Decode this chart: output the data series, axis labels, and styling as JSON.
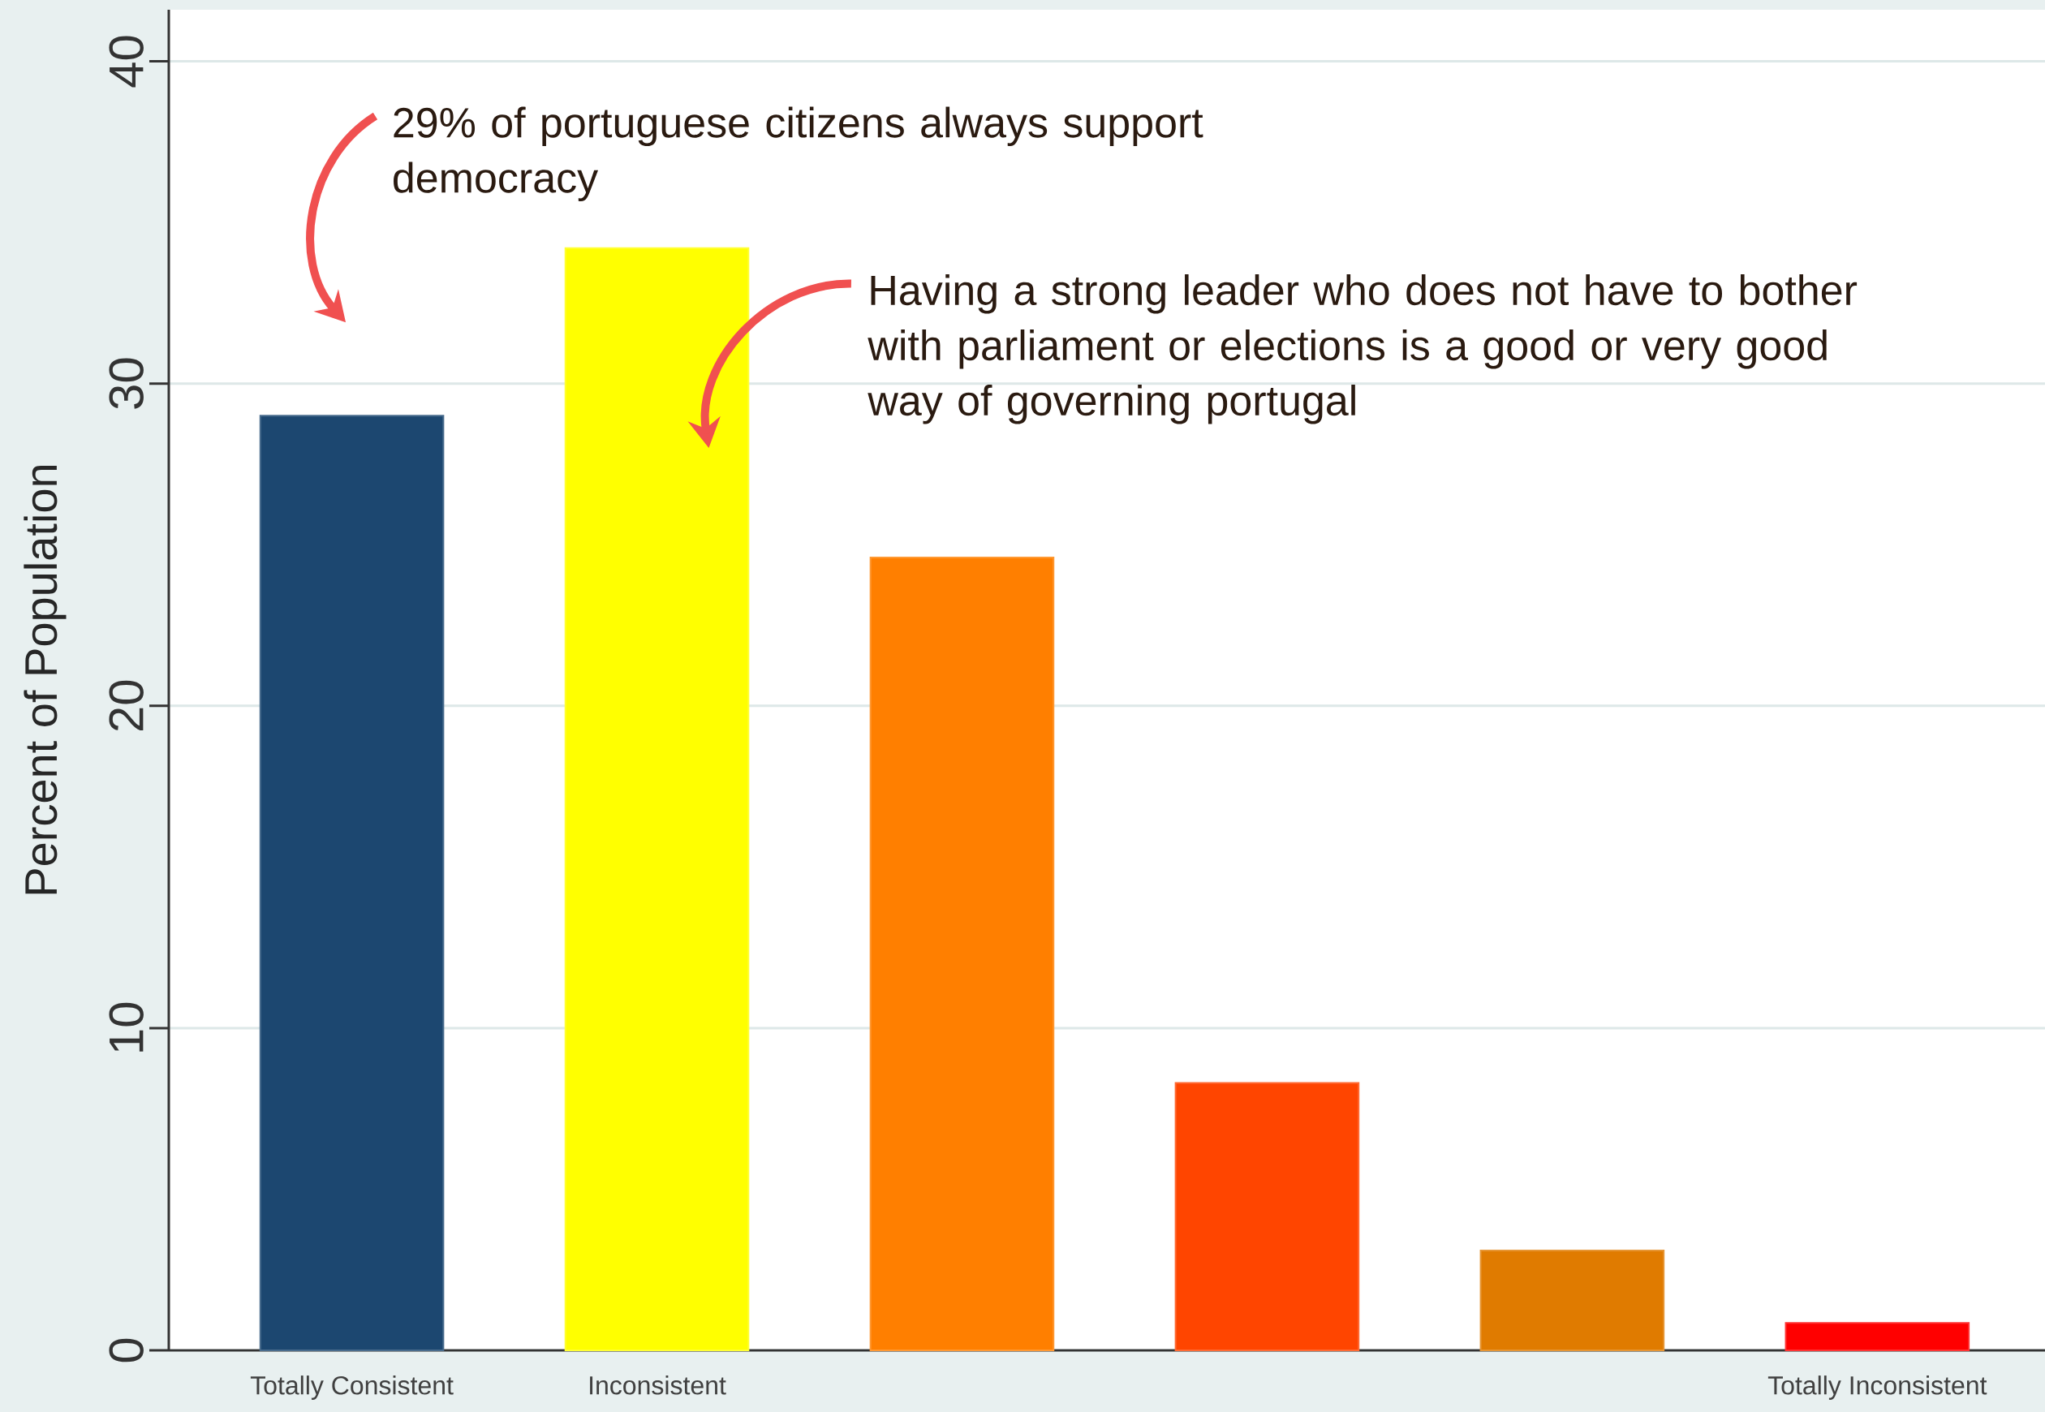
{
  "chart_data": {
    "type": "bar",
    "ylabel": "Percent of Population",
    "categories": [
      "Totally Consistent",
      "Inconsistent",
      null,
      null,
      null,
      "Totally Inconsistent"
    ],
    "values": [
      29.0,
      34.2,
      24.6,
      8.3,
      3.1,
      0.85
    ],
    "colors": [
      "#1c4770",
      "#ffff00",
      "#ff7f00",
      "#ff4500",
      "#e07b00",
      "#ff0000"
    ],
    "ylim": [
      0,
      41.6
    ],
    "yticks": [
      0,
      10,
      20,
      30,
      40
    ],
    "grid": "y",
    "annotations": [
      "29% of portuguese citizens always support democracy",
      "Having a strong leader who does not have to bother with parliament or elections is a good or very good way of governing portugal"
    ]
  }
}
